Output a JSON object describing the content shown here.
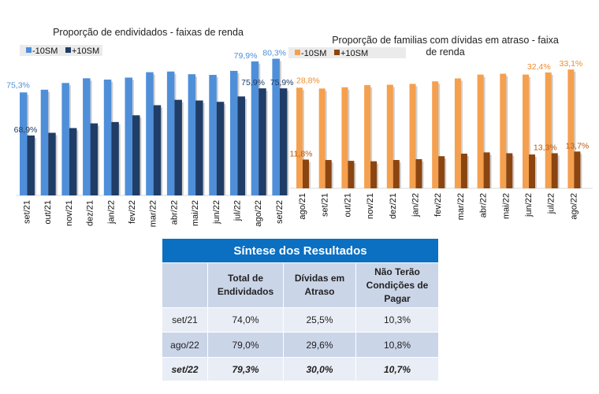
{
  "chart_data": [
    {
      "type": "bar",
      "title": "Proporção de endividados - faixas de renda",
      "legend_position": "top-left",
      "grid": false,
      "categories": [
        "set/21",
        "out/21",
        "nov/21",
        "dez/21",
        "jan/22",
        "fev/22",
        "mar/22",
        "abr/22",
        "mai/22",
        "jun/22",
        "jul/22",
        "ago/22",
        "set/22"
      ],
      "ylim": [
        60,
        82
      ],
      "series": [
        {
          "name": "-10SM",
          "color": "#4f8fd9",
          "values": [
            75.3,
            75.7,
            76.7,
            77.4,
            77.2,
            77.5,
            78.3,
            78.4,
            78.0,
            77.9,
            78.5,
            79.9,
            80.3
          ],
          "labels": {
            "0": "75,3%",
            "11": "79,9%",
            "12": "80,3%"
          }
        },
        {
          "name": "+10SM",
          "color": "#1f3d66",
          "values": [
            68.9,
            69.3,
            70.0,
            70.7,
            70.9,
            71.9,
            73.4,
            74.2,
            74.1,
            73.9,
            74.7,
            75.9,
            75.9
          ],
          "labels": {
            "0": "68,9%",
            "11": "75,9%",
            "12": "75,9%"
          }
        }
      ]
    },
    {
      "type": "bar",
      "title": "Proporção de familias com dívidas em atraso - faixa de renda",
      "legend_position": "top-left",
      "grid": false,
      "categories": [
        "ago/21",
        "set/21",
        "out/21",
        "nov/21",
        "dez/21",
        "jan/22",
        "fev/22",
        "mar/22",
        "abr/22",
        "mai/22",
        "jun/22",
        "jul/22",
        "ago/22"
      ],
      "ylim": [
        5,
        35
      ],
      "series": [
        {
          "name": "-10SM",
          "color": "#f5a04f",
          "values": [
            28.8,
            28.6,
            28.9,
            29.4,
            29.5,
            29.7,
            30.3,
            31.0,
            31.9,
            32.1,
            31.9,
            32.4,
            33.1
          ],
          "labels": {
            "0": "28,8%",
            "11": "32,4%",
            "12": "33,1%"
          }
        },
        {
          "name": "+10SM",
          "color": "#8b4510",
          "values": [
            11.8,
            11.7,
            11.5,
            11.4,
            11.7,
            11.9,
            12.6,
            13.2,
            13.5,
            13.3,
            13.0,
            13.3,
            13.7
          ],
          "labels": {
            "0": "11,8%",
            "11": "13,3%",
            "12": "13,7%"
          }
        }
      ]
    }
  ],
  "table": {
    "title": "Síntese dos Resultados",
    "headers": [
      "",
      "Total de Endividados",
      "Dívidas em Atraso",
      "Não Terão Condições de Pagar"
    ],
    "rows": [
      [
        "set/21",
        "74,0%",
        "25,5%",
        "10,3%"
      ],
      [
        "ago/22",
        "79,0%",
        "29,6%",
        "10,8%"
      ],
      [
        "set/22",
        "79,3%",
        "30,0%",
        "10,7%"
      ]
    ]
  }
}
